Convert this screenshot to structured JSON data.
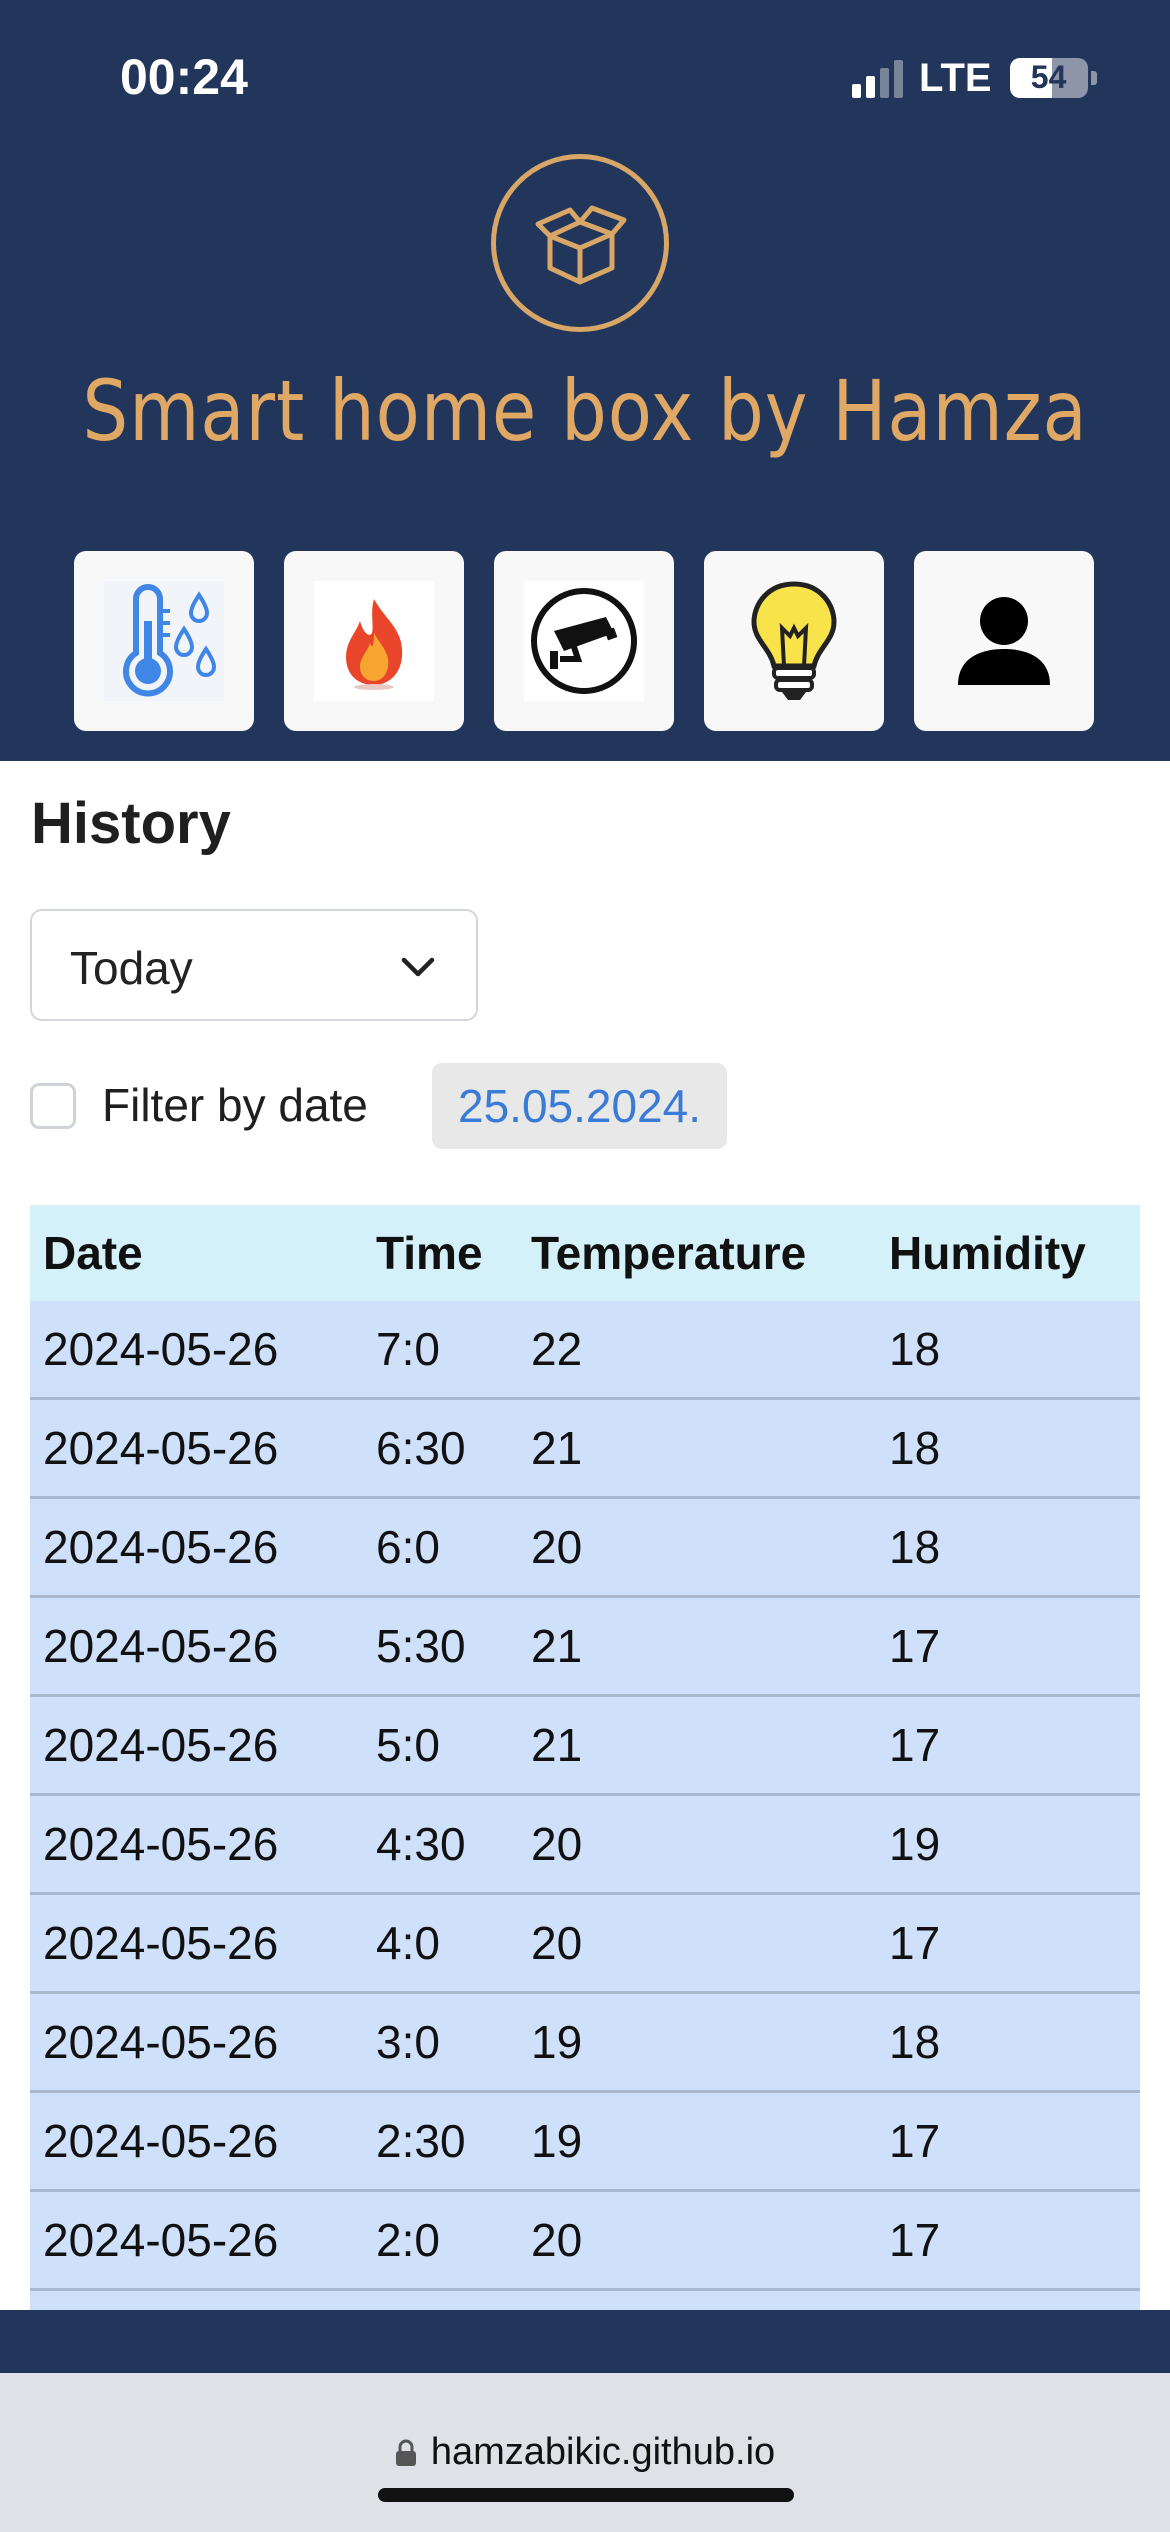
{
  "status_bar": {
    "time": "00:24",
    "network": "LTE",
    "battery_level": "54",
    "battery_fraction": 0.54,
    "signal_bars": 2
  },
  "brand": {
    "title": "Smart home box by Hamza",
    "logo_icon": "open-box-icon",
    "accent_color": "#dfa864",
    "header_color": "#22355b"
  },
  "nav_tiles": [
    {
      "name": "temperature-humidity",
      "icon": "thermometer-drops-icon"
    },
    {
      "name": "fire",
      "icon": "flame-icon"
    },
    {
      "name": "security-camera",
      "icon": "cctv-camera-icon"
    },
    {
      "name": "lighting",
      "icon": "light-bulb-icon"
    },
    {
      "name": "profile",
      "icon": "user-icon"
    }
  ],
  "history": {
    "title": "History",
    "period_select": {
      "value": "Today"
    },
    "filter": {
      "label": "Filter by date",
      "checked": false,
      "date": "25.05.2024."
    },
    "table": {
      "headers": [
        "Date",
        "Time",
        "Temperature",
        "Humidity"
      ],
      "rows": [
        [
          "2024-05-26",
          "7:0",
          "22",
          "18"
        ],
        [
          "2024-05-26",
          "6:30",
          "21",
          "18"
        ],
        [
          "2024-05-26",
          "6:0",
          "20",
          "18"
        ],
        [
          "2024-05-26",
          "5:30",
          "21",
          "17"
        ],
        [
          "2024-05-26",
          "5:0",
          "21",
          "17"
        ],
        [
          "2024-05-26",
          "4:30",
          "20",
          "19"
        ],
        [
          "2024-05-26",
          "4:0",
          "20",
          "17"
        ],
        [
          "2024-05-26",
          "3:0",
          "19",
          "18"
        ],
        [
          "2024-05-26",
          "2:30",
          "19",
          "17"
        ],
        [
          "2024-05-26",
          "2:0",
          "20",
          "17"
        ]
      ]
    }
  },
  "browser": {
    "url": "hamzabikic.github.io"
  }
}
